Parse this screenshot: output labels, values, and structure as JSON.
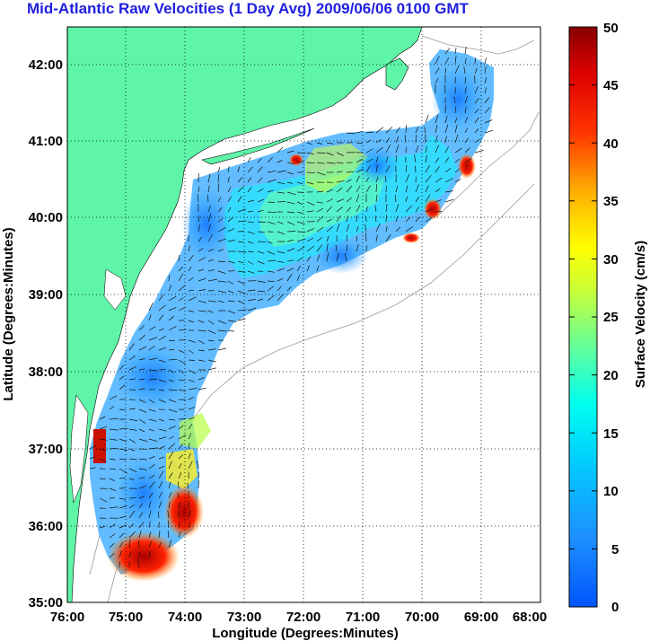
{
  "title": "Mid-Atlantic Raw Velocities (1 Day Avg) 2009/06/06 0100 GMT",
  "title_color": "#1f1fe0",
  "map": {
    "xlabel": "Longitude (Degrees:Minutes)",
    "ylabel": "Latitude (Degrees:Minutes)",
    "x_ticks": [
      "76:00",
      "75:00",
      "74:00",
      "73:00",
      "72:00",
      "71:00",
      "70:00",
      "69:00",
      "68:00"
    ],
    "y_ticks": [
      "35:00",
      "36:00",
      "37:00",
      "38:00",
      "39:00",
      "40:00",
      "41:00",
      "42:00"
    ],
    "land_color": "#5ef5a8",
    "grid": "dotted"
  },
  "colorbar": {
    "label": "Surface Velocity (cm/s)",
    "units": "cm/s",
    "range": [
      0,
      50
    ],
    "ticks": [
      "0",
      "5",
      "10",
      "15",
      "20",
      "25",
      "30",
      "35",
      "40",
      "45",
      "50"
    ],
    "colormap": "jet"
  }
}
